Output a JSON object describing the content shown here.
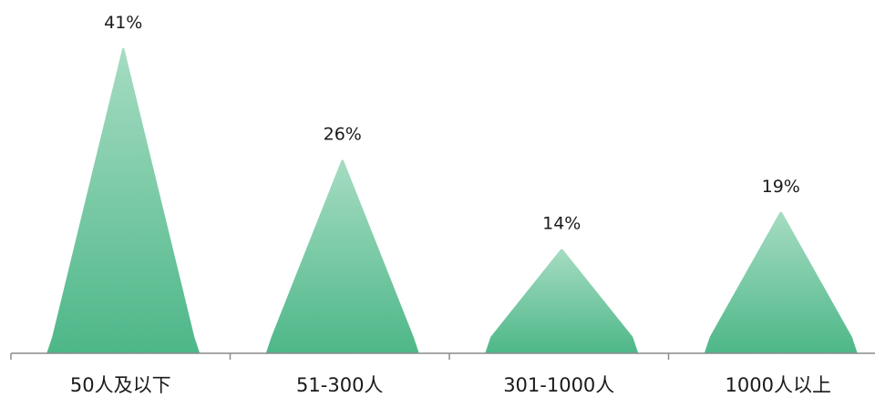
{
  "chart_data": {
    "type": "bar",
    "bar_shape": "triangle",
    "categories": [
      "50人及以下",
      "51-300人",
      "301-1000人",
      "1000人以上"
    ],
    "values": [
      41,
      26,
      14,
      19
    ],
    "value_labels": [
      "41%",
      "26%",
      "14%",
      "19%"
    ],
    "unit": "%",
    "ylim": [
      0,
      41
    ],
    "grid": false,
    "legend": "none",
    "colors": {
      "fill_top": "#a6dcc2",
      "fill_bottom": "#4db788",
      "axis": "#8c8c8c",
      "text": "#1a1a1a"
    }
  }
}
